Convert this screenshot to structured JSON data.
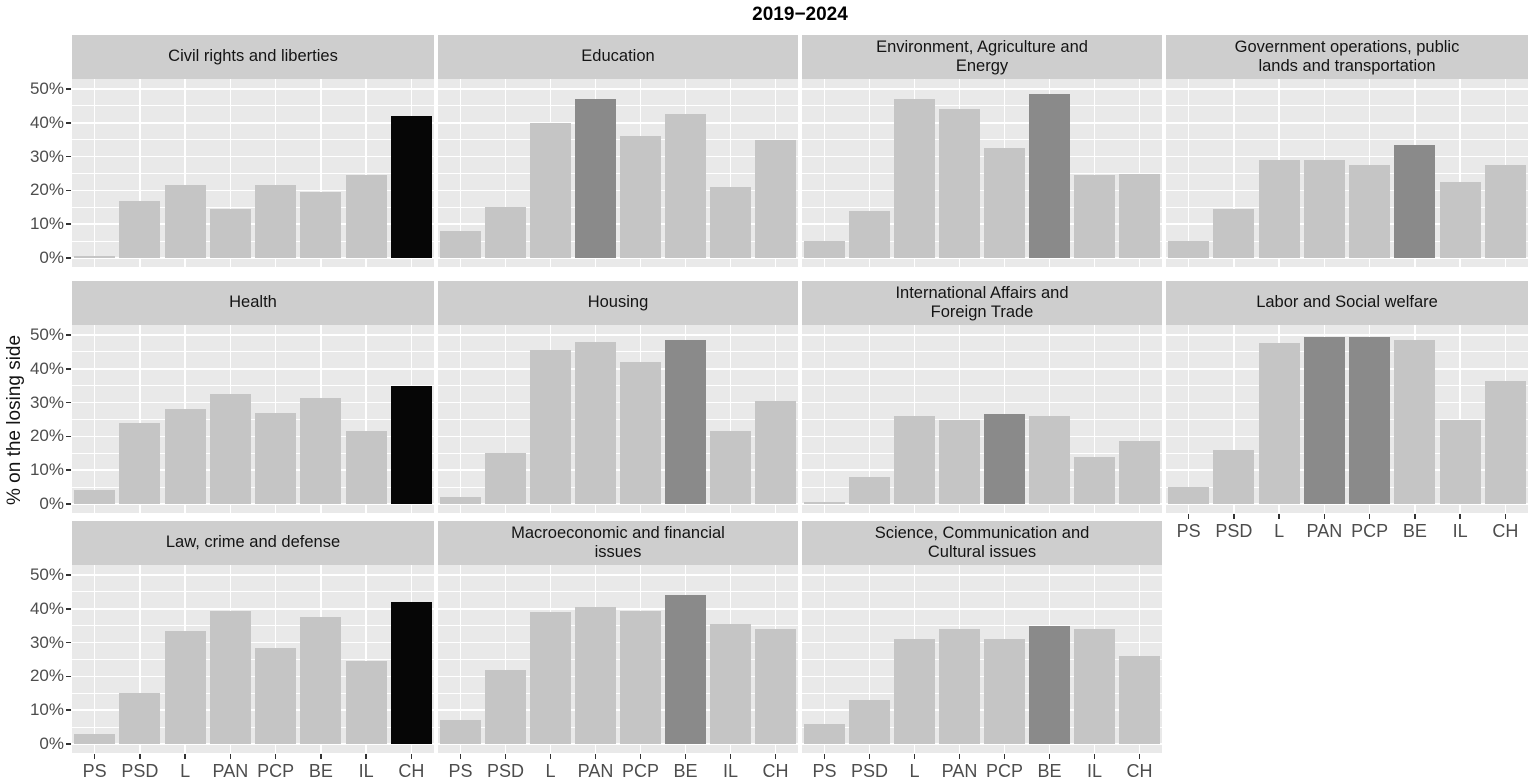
{
  "title": "2019−2024",
  "ylabel": "% on the losing side",
  "colors": {
    "bar_light": "#c5c5c5",
    "bar_dark": "#8a8a8a",
    "bar_black": "#060606",
    "panel_bg": "#e9e9e9",
    "strip_bg": "#cecece",
    "grid": "#ffffff",
    "axis_text": "#4d4d4d",
    "strip_text": "#141414",
    "title_text": "#000000"
  },
  "chart_data": {
    "type": "bar",
    "faceted": true,
    "categories": [
      "PS",
      "PSD",
      "L",
      "PAN",
      "PCP",
      "BE",
      "IL",
      "CH"
    ],
    "ylim": [
      0,
      52
    ],
    "ytick_values": [
      0,
      10,
      20,
      30,
      40,
      50
    ],
    "ytick_labels": [
      "0%",
      "10%",
      "20%",
      "30%",
      "40%",
      "50%"
    ],
    "yminor_values": [
      5,
      15,
      25,
      35,
      45
    ],
    "grid": true,
    "legend": "none",
    "facets": [
      {
        "title": "Civil rights and liberties",
        "row": 0,
        "col": 0,
        "values": [
          0.5,
          17,
          21.5,
          14.5,
          21.5,
          19.5,
          24.5,
          42
        ],
        "bar_colors": [
          "light",
          "light",
          "light",
          "light",
          "light",
          "light",
          "light",
          "black"
        ]
      },
      {
        "title": "Education",
        "row": 0,
        "col": 1,
        "values": [
          8,
          15,
          40,
          47,
          36,
          42.5,
          21,
          35
        ],
        "bar_colors": [
          "light",
          "light",
          "light",
          "dark",
          "light",
          "light",
          "light",
          "light"
        ]
      },
      {
        "title": "Environment, Agriculture and\nEnergy",
        "row": 0,
        "col": 2,
        "values": [
          5,
          14,
          47,
          44,
          32.5,
          48.5,
          24.5,
          25
        ],
        "bar_colors": [
          "light",
          "light",
          "light",
          "light",
          "light",
          "dark",
          "light",
          "light"
        ]
      },
      {
        "title": "Government operations, public\nlands and transportation",
        "row": 0,
        "col": 3,
        "values": [
          5,
          14.5,
          29,
          29,
          27.5,
          33.5,
          22.5,
          27.5
        ],
        "bar_colors": [
          "light",
          "light",
          "light",
          "light",
          "light",
          "dark",
          "light",
          "light"
        ]
      },
      {
        "title": "Health",
        "row": 1,
        "col": 0,
        "values": [
          4,
          24,
          28,
          32.5,
          27,
          31.5,
          21.5,
          35
        ],
        "bar_colors": [
          "light",
          "light",
          "light",
          "light",
          "light",
          "light",
          "light",
          "black"
        ]
      },
      {
        "title": "Housing",
        "row": 1,
        "col": 1,
        "values": [
          2,
          15,
          45.5,
          48,
          42,
          48.5,
          21.5,
          30.5
        ],
        "bar_colors": [
          "light",
          "light",
          "light",
          "light",
          "light",
          "dark",
          "light",
          "light"
        ]
      },
      {
        "title": "International Affairs and\nForeign Trade",
        "row": 1,
        "col": 2,
        "values": [
          0.5,
          8,
          26,
          25,
          26.5,
          26,
          14,
          18.5
        ],
        "bar_colors": [
          "light",
          "light",
          "light",
          "light",
          "dark",
          "light",
          "light",
          "light"
        ]
      },
      {
        "title": "Labor and Social welfare",
        "row": 1,
        "col": 3,
        "values": [
          5,
          16,
          47.5,
          49.5,
          49.5,
          48.5,
          25,
          36.5
        ],
        "bar_colors": [
          "light",
          "light",
          "light",
          "dark",
          "dark",
          "light",
          "light",
          "light"
        ]
      },
      {
        "title": "Law, crime and defense",
        "row": 2,
        "col": 0,
        "values": [
          3,
          15,
          33.5,
          39.5,
          28.5,
          37.5,
          24.5,
          42
        ],
        "bar_colors": [
          "light",
          "light",
          "light",
          "light",
          "light",
          "light",
          "light",
          "black"
        ]
      },
      {
        "title": "Macroeconomic and financial\nissues",
        "row": 2,
        "col": 1,
        "values": [
          7,
          22,
          39,
          40.5,
          39.5,
          44,
          35.5,
          34
        ],
        "bar_colors": [
          "light",
          "light",
          "light",
          "light",
          "light",
          "dark",
          "light",
          "light"
        ]
      },
      {
        "title": "Science, Communication and\nCultural issues",
        "row": 2,
        "col": 2,
        "values": [
          6,
          13,
          31,
          34,
          31,
          35,
          34,
          26
        ],
        "bar_colors": [
          "light",
          "light",
          "light",
          "light",
          "light",
          "dark",
          "light",
          "light"
        ]
      }
    ]
  }
}
